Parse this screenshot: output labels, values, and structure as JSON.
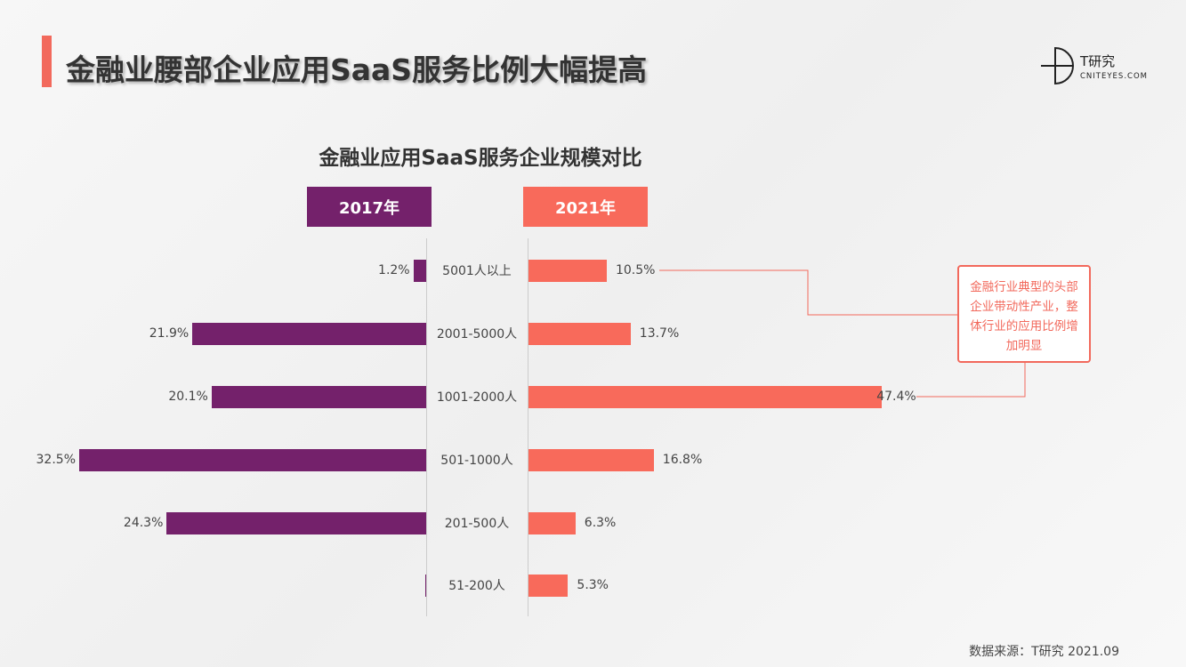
{
  "header": {
    "title": "金融业腰部企业应用SaaS服务比例大幅提高"
  },
  "logo": {
    "name": "T研究",
    "site": "CNITEYES.COM"
  },
  "chart_data": {
    "type": "bar",
    "title": "金融业应用SaaS服务企业规模对比",
    "categories": [
      "5001人以上",
      "2001-5000人",
      "1001-2000人",
      "501-1000人",
      "201-500人",
      "51-200人"
    ],
    "series": [
      {
        "name": "2017年",
        "values": [
          1.2,
          21.9,
          20.1,
          32.5,
          24.3,
          0
        ],
        "labels": [
          "1.2%",
          "21.9%",
          "20.1%",
          "32.5%",
          "24.3%",
          ""
        ],
        "color": "#74216b"
      },
      {
        "name": "2021年",
        "values": [
          10.5,
          13.7,
          47.4,
          16.8,
          6.3,
          5.3
        ],
        "labels": [
          "10.5%",
          "13.7%",
          "47.4%",
          "16.8%",
          "6.3%",
          "5.3%"
        ],
        "color": "#f86a5b"
      }
    ],
    "annotation": "金融行业典型的头部企业带动性产业，整体行业的应用比例增加明显"
  },
  "footer": {
    "source": "数据来源：T研究 2021.09"
  }
}
